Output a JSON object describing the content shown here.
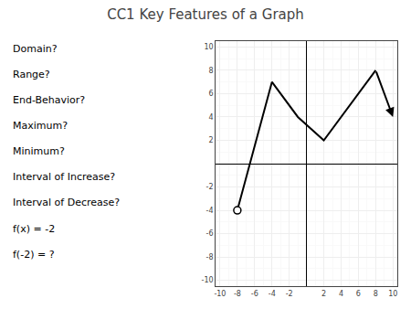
{
  "chart_data": {
    "type": "line",
    "title": "CC1 Key Features of a Graph",
    "annotations": [
      "Domain?",
      "Range?",
      "End-Behavior?",
      "Maximum?",
      "Minimum?",
      "Interval of Increase?",
      "Interval of Decrease?",
      "f(x) = -2",
      "f(-2) = ?"
    ],
    "x": [
      -8,
      -4,
      -1,
      2,
      8
    ],
    "values": [
      -4,
      7,
      4,
      2,
      8
    ],
    "arrow": {
      "x": [
        8,
        10
      ],
      "y": [
        8,
        4
      ]
    },
    "open_circle": {
      "x": -8,
      "y": -4
    },
    "color": "#000000",
    "xlim": [
      -10.5,
      10.5
    ],
    "ylim": [
      -10.5,
      10.5
    ],
    "xticks": [
      -10,
      -8,
      -6,
      -4,
      -2,
      2,
      4,
      6,
      8,
      10
    ],
    "yticks": [
      -10,
      -8,
      -6,
      -4,
      -2,
      2,
      4,
      6,
      8,
      10
    ],
    "grid": true
  }
}
